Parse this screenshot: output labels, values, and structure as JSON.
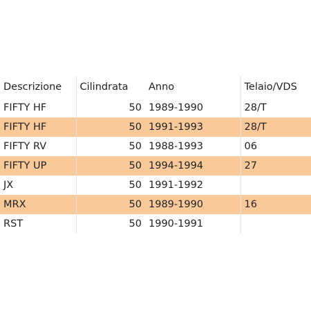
{
  "table": {
    "headers": [
      "Descrizione",
      "Cilindrata",
      "Anno",
      "Telaio/VDS"
    ],
    "rows": [
      {
        "descrizione": "FIFTY HF",
        "cilindrata": "50",
        "anno": "1989-1990",
        "telaio": "28/T"
      },
      {
        "descrizione": "FIFTY HF",
        "cilindrata": "50",
        "anno": "1991-1993",
        "telaio": "28/T"
      },
      {
        "descrizione": "FIFTY RV",
        "cilindrata": "50",
        "anno": "1988-1993",
        "telaio": "06"
      },
      {
        "descrizione": "FIFTY UP",
        "cilindrata": "50",
        "anno": "1994-1994",
        "telaio": "27"
      },
      {
        "descrizione": "JX",
        "cilindrata": "50",
        "anno": "1991-1992",
        "telaio": ""
      },
      {
        "descrizione": "MRX",
        "cilindrata": "50",
        "anno": "1989-1990",
        "telaio": "16"
      },
      {
        "descrizione": "RST",
        "cilindrata": "50",
        "anno": "1990-1991",
        "telaio": ""
      }
    ]
  },
  "colors": {
    "alternate_row": "#f9c99a",
    "text": "#222222"
  }
}
